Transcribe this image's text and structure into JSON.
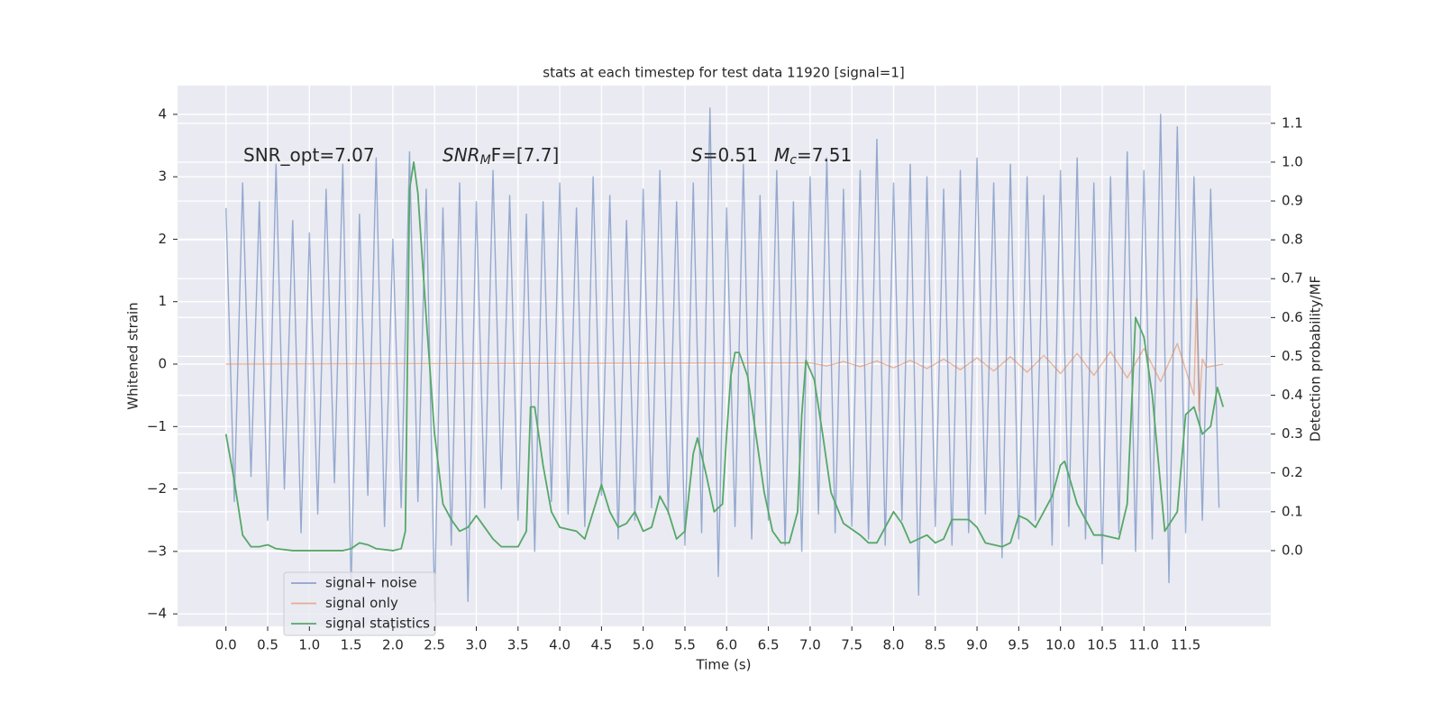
{
  "chart_data": {
    "type": "line",
    "title": "stats at each timestep for test data 11920 [signal=1]",
    "x_label": "Time (s)",
    "y_label": "Whitened strain",
    "y2_label": "Detection probability/MF",
    "xlim": [
      -0.58,
      12.52
    ],
    "ylim": [
      -4.2,
      4.46
    ],
    "y2lim": [
      -0.195,
      1.197
    ],
    "grid": true,
    "legend": "lower left",
    "xticks": [
      {
        "value": 0,
        "label": "0.0"
      },
      0.5,
      {
        "value": 1,
        "label": "1.0"
      },
      1.5,
      {
        "value": 2,
        "label": "2.0"
      },
      2.5,
      {
        "value": 3,
        "label": "3.0"
      },
      3.5,
      {
        "value": 4,
        "label": "4.0"
      },
      4.5,
      {
        "value": 5,
        "label": "5.0"
      },
      5.5,
      {
        "value": 6,
        "label": "6.0"
      },
      6.5,
      {
        "value": 7,
        "label": "7.0"
      },
      7.5,
      {
        "value": 8,
        "label": "8.0"
      },
      8.5,
      {
        "value": 9,
        "label": "9.0"
      },
      9.5,
      {
        "value": 10,
        "label": "10.0"
      },
      10.5,
      {
        "value": 11,
        "label": "11.0"
      },
      11.5
    ],
    "yticks": [
      {
        "value": -4,
        "label": "−4"
      },
      {
        "value": -3,
        "label": "−3"
      },
      {
        "value": -2,
        "label": "−2"
      },
      {
        "value": -1,
        "label": "−1"
      },
      0,
      1,
      2,
      3,
      4
    ],
    "y2ticks": [
      {
        "value": 0,
        "label": "0.0"
      },
      0.1,
      0.2,
      0.3,
      0.4,
      0.5,
      0.6,
      0.7,
      0.8,
      0.9,
      {
        "value": 1,
        "label": "1.0"
      },
      1.1
    ],
    "annotations": [
      [
        "SNR_opt=7.07"
      ],
      [
        "SNR",
        "M",
        "F=[7.7]"
      ],
      [
        "S",
        "=0.51"
      ],
      [
        "M",
        "c",
        "=7.51"
      ]
    ],
    "series": [
      {
        "name": "signal+ noise",
        "color": "#4c72b0",
        "x": [
          0,
          0.1,
          0.2,
          0.3,
          0.4,
          0.5,
          0.6,
          0.7,
          0.8,
          0.9,
          1,
          1.1,
          1.2,
          1.3,
          1.4,
          1.5,
          1.6,
          1.7,
          1.8,
          1.9,
          2,
          2.1,
          2.2,
          2.3,
          2.4,
          2.5,
          2.6,
          2.7,
          2.8,
          2.9,
          3,
          3.1,
          3.2,
          3.3,
          3.4,
          3.5,
          3.6,
          3.7,
          3.8,
          3.9,
          4,
          4.1,
          4.2,
          4.3,
          4.4,
          4.5,
          4.6,
          4.7,
          4.8,
          4.9,
          5,
          5.1,
          5.2,
          5.3,
          5.4,
          5.5,
          5.6,
          5.7,
          5.8,
          5.9,
          6,
          6.1,
          6.2,
          6.3,
          6.4,
          6.5,
          6.6,
          6.7,
          6.8,
          6.9,
          7,
          7.1,
          7.2,
          7.3,
          7.4,
          7.5,
          7.6,
          7.7,
          7.8,
          7.9,
          8,
          8.1,
          8.2,
          8.3,
          8.4,
          8.5,
          8.6,
          8.7,
          8.8,
          8.9,
          9,
          9.1,
          9.2,
          9.3,
          9.4,
          9.5,
          9.6,
          9.7,
          9.8,
          9.9,
          10,
          10.1,
          10.2,
          10.3,
          10.4,
          10.5,
          10.6,
          10.7,
          10.8,
          10.9,
          11,
          11.1,
          11.2,
          11.3,
          11.4,
          11.5,
          11.6,
          11.7,
          11.8,
          11.9
        ],
        "values": [
          2.5,
          -2.2,
          2.9,
          -1.8,
          2.6,
          -2.5,
          3.2,
          -2.0,
          2.3,
          -2.7,
          2.1,
          -2.4,
          2.8,
          -1.9,
          3.2,
          -3.6,
          2.4,
          -2.1,
          3.3,
          -2.6,
          2.0,
          -2.3,
          3.4,
          -2.2,
          2.8,
          -3.8,
          2.5,
          -2.9,
          2.9,
          -3.8,
          2.6,
          -2.3,
          3.1,
          -2.0,
          2.7,
          -2.5,
          2.4,
          -3.0,
          2.6,
          -2.2,
          2.9,
          -2.4,
          2.5,
          -2.6,
          3.0,
          -2.1,
          2.7,
          -2.8,
          2.3,
          -2.5,
          2.8,
          -2.3,
          3.1,
          -2.4,
          2.6,
          -2.9,
          2.9,
          -2.7,
          4.1,
          -3.4,
          2.5,
          -2.6,
          3.2,
          -2.8,
          2.7,
          -2.5,
          3.1,
          -2.9,
          2.6,
          -3.0,
          3.0,
          -2.4,
          3.3,
          -2.7,
          2.8,
          -2.6,
          3.1,
          -2.8,
          3.6,
          -2.9,
          2.9,
          -2.5,
          3.2,
          -3.7,
          3.0,
          -2.6,
          2.8,
          -2.9,
          3.1,
          -2.7,
          3.3,
          -2.4,
          2.9,
          -3.1,
          3.2,
          -2.8,
          3.0,
          -2.5,
          2.7,
          -2.9,
          3.1,
          -2.6,
          3.3,
          -2.8,
          2.9,
          -3.2,
          3.0,
          -2.7,
          3.4,
          -3.0,
          3.1,
          -2.8,
          4.0,
          -3.5,
          3.8,
          -2.7,
          3.0,
          -2.5,
          2.8,
          -2.3
        ]
      },
      {
        "name": "signal only",
        "color": "#dd8452",
        "x": [
          0,
          7,
          7.2,
          7.4,
          7.6,
          7.8,
          8,
          8.2,
          8.4,
          8.6,
          8.8,
          9,
          9.2,
          9.4,
          9.6,
          9.8,
          10,
          10.2,
          10.4,
          10.6,
          10.8,
          11,
          11.2,
          11.4,
          11.6,
          11.63,
          11.66,
          11.7,
          11.75,
          11.95
        ],
        "values": [
          0,
          0.02,
          -0.03,
          0.04,
          -0.04,
          0.05,
          -0.06,
          0.06,
          -0.07,
          0.08,
          -0.09,
          0.1,
          -0.11,
          0.12,
          -0.13,
          0.14,
          -0.15,
          0.17,
          -0.18,
          0.2,
          -0.22,
          0.25,
          -0.28,
          0.33,
          -0.5,
          1.05,
          -0.75,
          0.08,
          -0.05,
          0
        ]
      },
      {
        "name": "signal statistics",
        "color": "#55a868",
        "axis": "y2",
        "x": [
          0,
          0.1,
          0.2,
          0.3,
          0.4,
          0.5,
          0.6,
          0.8,
          1,
          1.2,
          1.4,
          1.5,
          1.6,
          1.7,
          1.8,
          2,
          2.1,
          2.15,
          2.2,
          2.25,
          2.3,
          2.4,
          2.5,
          2.6,
          2.7,
          2.8,
          2.9,
          3,
          3.1,
          3.2,
          3.3,
          3.5,
          3.6,
          3.65,
          3.7,
          3.8,
          3.9,
          4,
          4.2,
          4.3,
          4.4,
          4.5,
          4.6,
          4.7,
          4.8,
          4.9,
          5,
          5.1,
          5.2,
          5.3,
          5.4,
          5.5,
          5.6,
          5.65,
          5.75,
          5.85,
          5.95,
          6,
          6.05,
          6.1,
          6.15,
          6.25,
          6.35,
          6.45,
          6.55,
          6.65,
          6.75,
          6.85,
          6.9,
          6.95,
          7.05,
          7.15,
          7.25,
          7.4,
          7.6,
          7.7,
          7.8,
          7.9,
          8,
          8.1,
          8.2,
          8.4,
          8.5,
          8.6,
          8.7,
          8.9,
          9,
          9.1,
          9.3,
          9.4,
          9.5,
          9.6,
          9.7,
          9.8,
          9.9,
          10,
          10.05,
          10.2,
          10.4,
          10.5,
          10.7,
          10.8,
          10.9,
          11,
          11.1,
          11.25,
          11.4,
          11.5,
          11.6,
          11.7,
          11.8,
          11.88,
          11.95
        ],
        "values": [
          0.3,
          0.18,
          0.04,
          0.01,
          0.01,
          0.015,
          0.005,
          0,
          0,
          0,
          0,
          0.005,
          0.02,
          0.015,
          0.005,
          0,
          0.005,
          0.05,
          0.93,
          1,
          0.92,
          0.6,
          0.3,
          0.12,
          0.08,
          0.05,
          0.06,
          0.09,
          0.06,
          0.03,
          0.01,
          0.01,
          0.05,
          0.37,
          0.37,
          0.22,
          0.1,
          0.06,
          0.05,
          0.03,
          0.1,
          0.17,
          0.1,
          0.06,
          0.07,
          0.1,
          0.05,
          0.06,
          0.14,
          0.1,
          0.03,
          0.05,
          0.25,
          0.29,
          0.2,
          0.1,
          0.12,
          0.3,
          0.45,
          0.51,
          0.51,
          0.45,
          0.3,
          0.15,
          0.05,
          0.02,
          0.02,
          0.1,
          0.35,
          0.49,
          0.44,
          0.3,
          0.15,
          0.07,
          0.04,
          0.02,
          0.02,
          0.06,
          0.1,
          0.07,
          0.02,
          0.04,
          0.02,
          0.03,
          0.08,
          0.08,
          0.06,
          0.02,
          0.01,
          0.02,
          0.09,
          0.08,
          0.06,
          0.1,
          0.14,
          0.22,
          0.23,
          0.12,
          0.04,
          0.04,
          0.03,
          0.12,
          0.6,
          0.55,
          0.4,
          0.05,
          0.1,
          0.35,
          0.37,
          0.3,
          0.32,
          0.42,
          0.37
        ]
      }
    ]
  }
}
